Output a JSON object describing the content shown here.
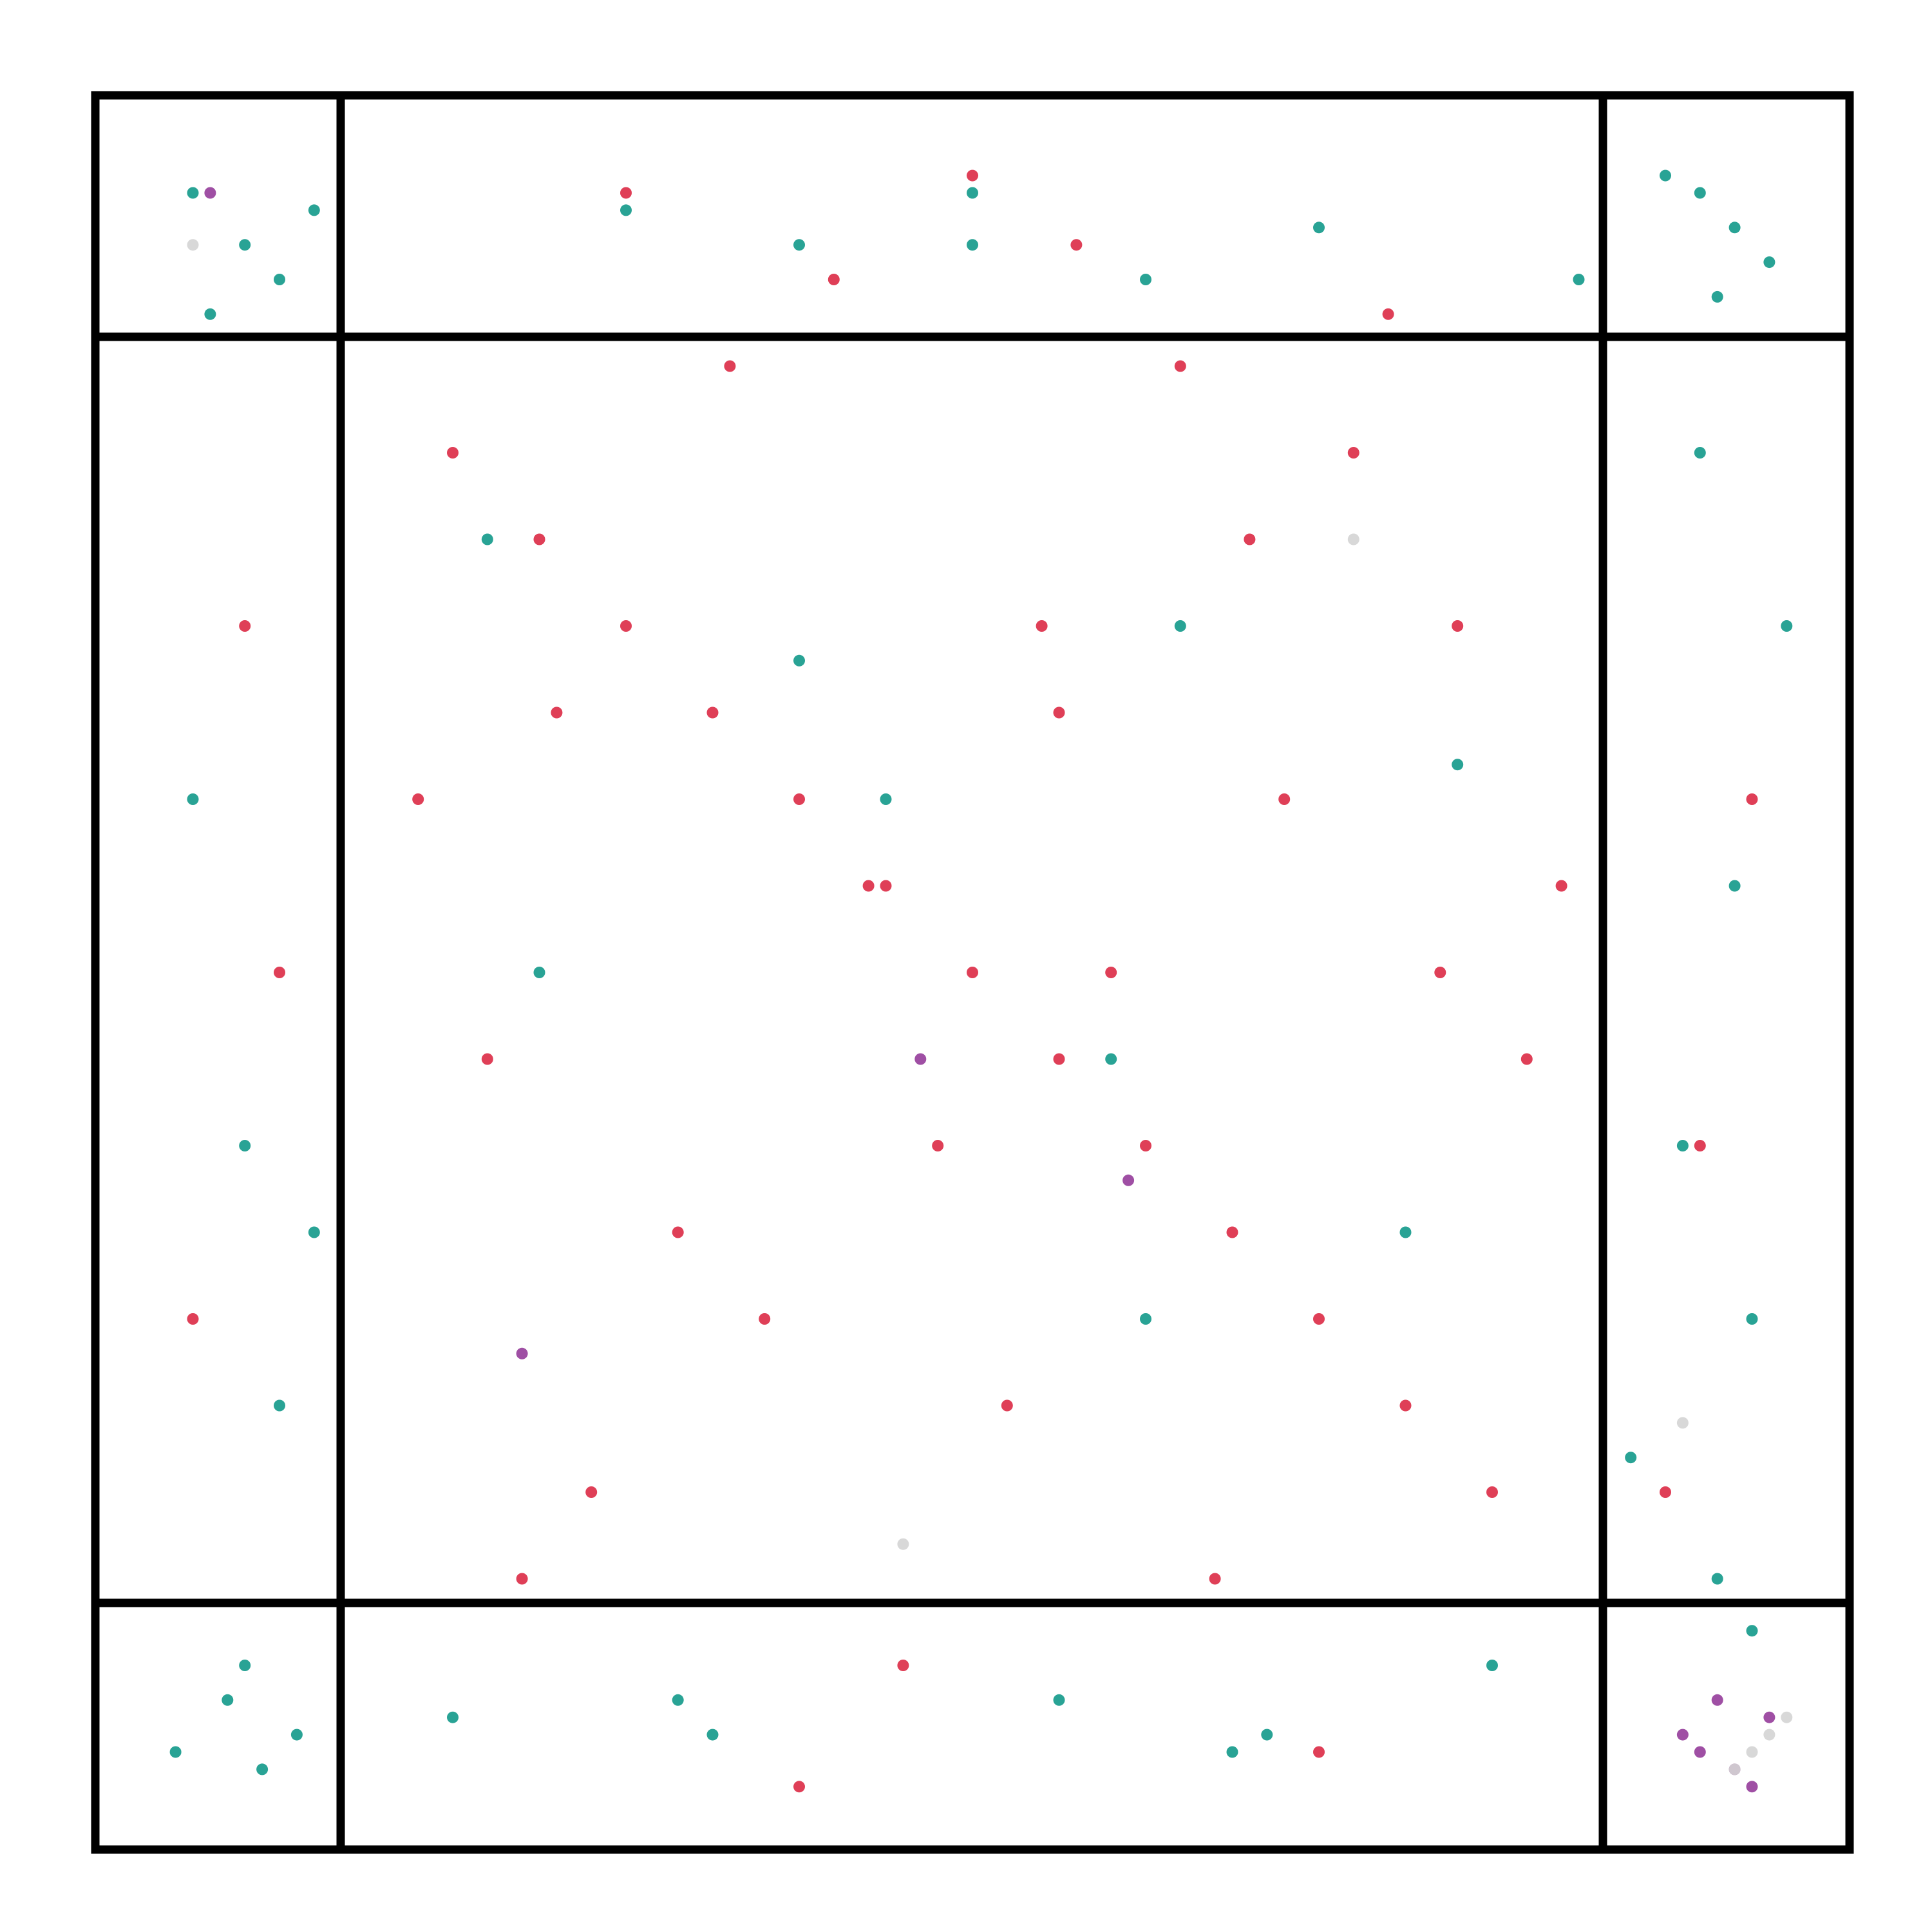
{
  "chart_data": {
    "type": "scatter",
    "xlim": [
      0,
      100
    ],
    "ylim": [
      0,
      100
    ],
    "series": [
      {
        "color": "#dc2a45",
        "x": [
          20,
          25,
          30,
          35,
          40,
          45,
          50,
          55,
          60,
          65,
          70,
          75,
          80,
          22,
          33,
          44,
          55,
          66,
          77,
          28,
          38,
          48,
          58,
          68,
          78,
          18,
          52,
          62,
          72,
          42,
          10,
          5,
          92,
          95,
          8,
          90,
          50,
          30,
          70,
          40,
          24,
          36,
          46,
          56,
          64,
          74,
          84,
          26,
          54,
          82
        ],
        "values": [
          80,
          75,
          70,
          65,
          60,
          55,
          50,
          45,
          40,
          35,
          30,
          25,
          20,
          45,
          35,
          55,
          65,
          75,
          50,
          20,
          30,
          40,
          50,
          60,
          70,
          60,
          25,
          85,
          80,
          90,
          50,
          30,
          40,
          60,
          70,
          20,
          96,
          95,
          5,
          3,
          15,
          85,
          10,
          92,
          15,
          88,
          55,
          65,
          70,
          45
        ]
      },
      {
        "color": "#12998a",
        "x": [
          5,
          8,
          10,
          12,
          6,
          92,
          94,
          96,
          93,
          90,
          4,
          7,
          9,
          11,
          8,
          95,
          93,
          91,
          94,
          97,
          30,
          40,
          50,
          60,
          70,
          35,
          55,
          65,
          20,
          80,
          5,
          8,
          10,
          92,
          95,
          45,
          58,
          75,
          25,
          62,
          12,
          88,
          50,
          33,
          67,
          40,
          60,
          78,
          22,
          85
        ],
        "values": [
          95,
          92,
          90,
          94,
          88,
          95,
          93,
          91,
          89,
          96,
          5,
          8,
          4,
          6,
          10,
          12,
          15,
          40,
          55,
          70,
          94,
          92,
          95,
          90,
          93,
          6,
          8,
          5,
          7,
          10,
          60,
          40,
          25,
          80,
          30,
          60,
          45,
          35,
          50,
          70,
          35,
          22,
          92,
          8,
          6,
          68,
          30,
          62,
          75,
          90
        ]
      },
      {
        "color": "#953c9a",
        "x": [
          92,
          94,
          96,
          93,
          95,
          91,
          24,
          47,
          6,
          59
        ],
        "values": [
          5,
          4,
          7,
          8,
          3,
          6,
          28,
          45,
          95,
          38
        ]
      },
      {
        "color": "#d4d4d4",
        "x": [
          95,
          96,
          94,
          97,
          5,
          46,
          72,
          91
        ],
        "values": [
          5,
          6,
          4,
          7,
          92,
          17,
          75,
          24
        ]
      }
    ]
  }
}
